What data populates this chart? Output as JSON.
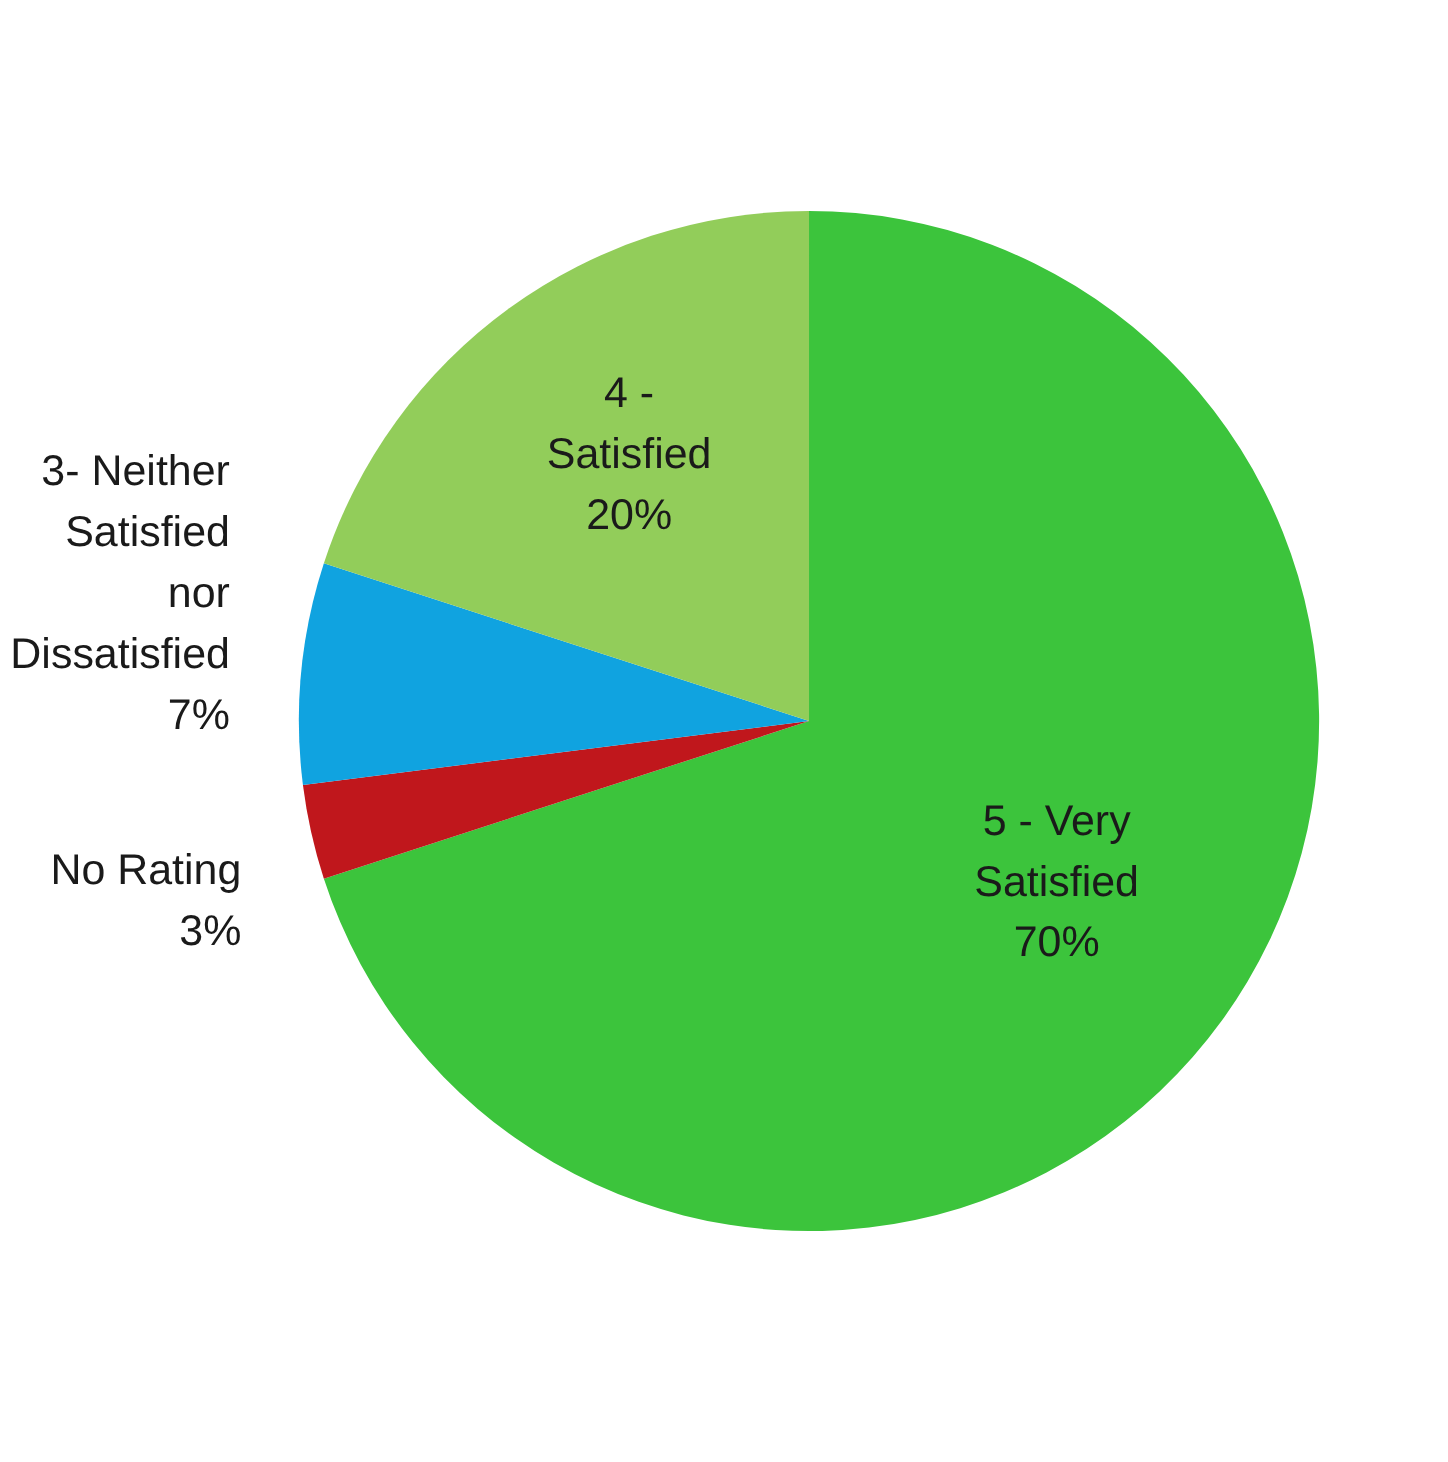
{
  "chart_data": {
    "type": "pie",
    "categories": [
      "5 - Very Satisfied",
      "No Rating",
      "3- Neither Satisfied nor Dissatisfied",
      "4 - Satisfied"
    ],
    "values": [
      70,
      3,
      7,
      20
    ],
    "colors": [
      "#3cc43c",
      "#c0171c",
      "#10a3e0",
      "#92cd5a"
    ],
    "value_labels": [
      "70%",
      "3%",
      "7%",
      "20%"
    ],
    "legend": false
  }
}
